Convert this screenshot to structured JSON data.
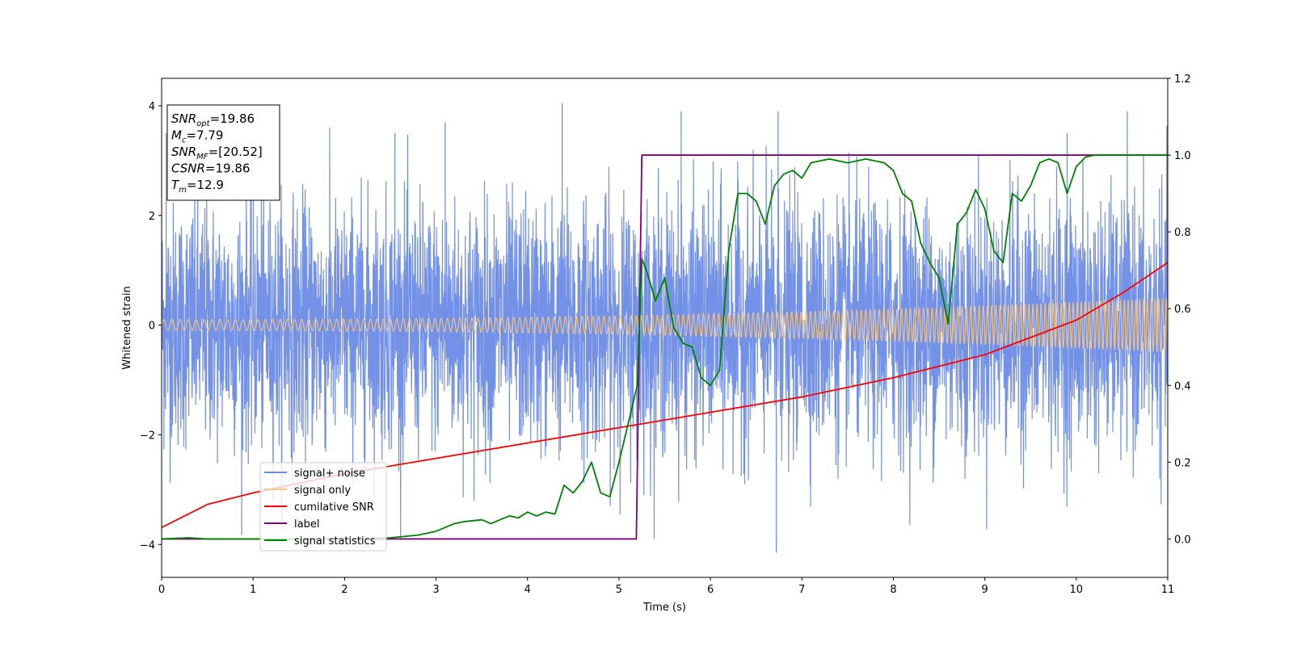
{
  "chart_data": {
    "type": "line",
    "xlabel": "Time (s)",
    "ylabel": "Whitened strain",
    "xlim": [
      0,
      11
    ],
    "ylim": [
      -4.6,
      4.5
    ],
    "y2lim": [
      -0.1,
      1.2
    ],
    "x_ticks": [
      "0",
      "1",
      "2",
      "3",
      "4",
      "5",
      "6",
      "7",
      "8",
      "9",
      "10",
      "11"
    ],
    "x_tick_values": [
      0,
      1,
      2,
      3,
      4,
      5,
      6,
      7,
      8,
      9,
      10,
      11
    ],
    "y_ticks": [
      "4",
      "2",
      "0",
      "−2",
      "−4"
    ],
    "y_tick_values": [
      4,
      2,
      0,
      -2,
      -4
    ],
    "y2_ticks": [
      "1.2",
      "1.0",
      "0.8",
      "0.6",
      "0.4",
      "0.2",
      "0.0"
    ],
    "y2_tick_values": [
      1.2,
      1.0,
      0.8,
      0.6,
      0.4,
      0.2,
      0.0
    ],
    "info_box": {
      "lines": [
        {
          "sym": "SNR",
          "sub": "opt",
          "val": "=19.86"
        },
        {
          "sym": "M",
          "sub": "c",
          "val": "=7.79"
        },
        {
          "sym": "SNR",
          "sub": "MF",
          "val": "=[20.52]"
        },
        {
          "sym": "CSNR",
          "sub": "",
          "val": "=19.86"
        },
        {
          "sym": "T",
          "sub": "m",
          "val": "=12.9"
        }
      ]
    },
    "legend": {
      "placement": "lower-left",
      "entries": [
        {
          "label": "signal+ noise",
          "color": "#6b8be6"
        },
        {
          "label": "signal only",
          "color": "#ffc97a"
        },
        {
          "label": "cumilative SNR",
          "color": "#ff0000"
        },
        {
          "label": "label",
          "color": "#800080"
        },
        {
          "label": "signal statistics",
          "color": "#008000"
        }
      ]
    },
    "series": [
      {
        "name": "signal+ noise",
        "axis": "left",
        "color": "#6b8be6",
        "description": "dense noisy strain, amplitude ~N(0,1.1), peaks to ~±4",
        "noise_std": 1.1,
        "peak_max": 4.05,
        "peak_min": -4.15
      },
      {
        "name": "signal only",
        "axis": "left",
        "color": "#ffc97a",
        "description": "chirp oscillation, amplitude grows from ~0.1 to ~0.5",
        "amp_start": 0.1,
        "amp_end": 0.5
      },
      {
        "name": "cumilative SNR",
        "axis": "right",
        "color": "#ff0000",
        "x": [
          0,
          0.5,
          1,
          2,
          3,
          4,
          5,
          6,
          7,
          8,
          9,
          10,
          10.5,
          11
        ],
        "y": [
          0.03,
          0.09,
          0.12,
          0.17,
          0.21,
          0.25,
          0.29,
          0.33,
          0.37,
          0.42,
          0.48,
          0.57,
          0.64,
          0.72
        ]
      },
      {
        "name": "label",
        "axis": "right",
        "color": "#800080",
        "x": [
          0,
          5.19,
          5.25,
          11
        ],
        "y": [
          0,
          0,
          1,
          1
        ]
      },
      {
        "name": "signal statistics",
        "axis": "right",
        "color": "#008000",
        "x": [
          0,
          0.3,
          0.5,
          1,
          1.5,
          2,
          2.5,
          2.8,
          3.0,
          3.1,
          3.2,
          3.3,
          3.5,
          3.6,
          3.7,
          3.8,
          3.9,
          4.0,
          4.1,
          4.2,
          4.3,
          4.4,
          4.5,
          4.6,
          4.7,
          4.8,
          4.9,
          5.0,
          5.1,
          5.2,
          5.25,
          5.3,
          5.4,
          5.5,
          5.6,
          5.7,
          5.8,
          5.9,
          6.0,
          6.1,
          6.2,
          6.3,
          6.4,
          6.5,
          6.6,
          6.7,
          6.8,
          6.9,
          7.0,
          7.1,
          7.3,
          7.5,
          7.7,
          7.9,
          8.0,
          8.1,
          8.2,
          8.3,
          8.4,
          8.5,
          8.6,
          8.7,
          8.8,
          8.9,
          9.0,
          9.1,
          9.2,
          9.3,
          9.4,
          9.5,
          9.6,
          9.7,
          9.8,
          9.9,
          10.0,
          10.1,
          10.2,
          10.4,
          10.6,
          10.8,
          11.0
        ],
        "y": [
          0.0,
          0.003,
          0.0,
          0.0,
          0.0,
          0.0,
          0.003,
          0.01,
          0.02,
          0.03,
          0.04,
          0.045,
          0.05,
          0.04,
          0.05,
          0.06,
          0.055,
          0.07,
          0.06,
          0.07,
          0.065,
          0.14,
          0.12,
          0.15,
          0.2,
          0.12,
          0.11,
          0.2,
          0.3,
          0.4,
          0.73,
          0.7,
          0.62,
          0.68,
          0.55,
          0.51,
          0.5,
          0.42,
          0.4,
          0.44,
          0.75,
          0.9,
          0.9,
          0.88,
          0.82,
          0.92,
          0.95,
          0.96,
          0.94,
          0.98,
          0.99,
          0.98,
          0.99,
          0.98,
          0.96,
          0.9,
          0.88,
          0.77,
          0.72,
          0.68,
          0.56,
          0.82,
          0.85,
          0.91,
          0.86,
          0.75,
          0.72,
          0.9,
          0.88,
          0.92,
          0.98,
          0.99,
          0.98,
          0.9,
          0.97,
          0.995,
          1.0,
          1.0,
          1.0,
          1.0,
          1.0
        ]
      }
    ]
  }
}
